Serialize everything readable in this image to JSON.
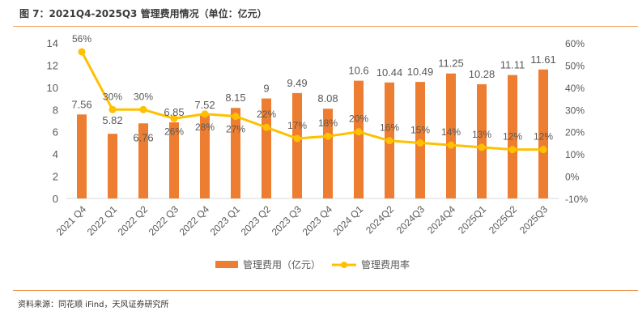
{
  "header": {
    "title": "图 7：2021Q4-2025Q3 管理费用情况（单位：亿元）"
  },
  "footer": {
    "source": "资料来源：同花顺 iFind，天风证券研究所"
  },
  "chart_data": {
    "type": "bar+line",
    "title": "2021Q4-2025Q3 管理费用情况（单位：亿元）",
    "categories": [
      "2021 Q4",
      "2022 Q1",
      "2022 Q2",
      "2022 Q3",
      "2022 Q4",
      "2023 Q1",
      "2023 Q2",
      "2023 Q3",
      "2023 Q4",
      "2024 Q1",
      "2024Q2",
      "2024Q3",
      "2024Q4",
      "2025Q1",
      "2025Q2",
      "2025Q3"
    ],
    "series": [
      {
        "name": "管理费用（亿元）",
        "type": "bar",
        "axis": "left",
        "color": "#ed7d31",
        "values": [
          7.56,
          5.82,
          6.76,
          6.85,
          7.52,
          8.15,
          9,
          9.49,
          8.08,
          10.6,
          10.44,
          10.49,
          11.25,
          10.28,
          11.11,
          11.61
        ],
        "labels": [
          "7.56",
          "5.82",
          "6.76",
          "6.85",
          "7.52",
          "8.15",
          "9",
          "9.49",
          "8.08",
          "10.6",
          "10.44",
          "10.49",
          "11.25",
          "10.28",
          "11.11",
          "11.61"
        ]
      },
      {
        "name": "管理费用率",
        "type": "line",
        "axis": "right",
        "color": "#ffc000",
        "values": [
          56,
          30,
          30,
          26,
          28,
          27,
          22,
          17,
          18,
          20,
          16,
          15,
          14,
          13,
          12,
          12
        ],
        "labels": [
          "56%",
          "30%",
          "30%",
          "26%",
          "28%",
          "27%",
          "22%",
          "17%",
          "18%",
          "20%",
          "16%",
          "15%",
          "14%",
          "13%",
          "12%",
          "12%"
        ]
      }
    ],
    "left_axis": {
      "min": 0,
      "max": 14,
      "ticks": [
        "0",
        "2",
        "4",
        "6",
        "8",
        "10",
        "12",
        "14"
      ]
    },
    "right_axis": {
      "min": -10,
      "max": 60,
      "ticks": [
        "-10%",
        "0%",
        "10%",
        "20%",
        "30%",
        "40%",
        "50%",
        "60%"
      ]
    },
    "xlabel": "",
    "ylabel": "",
    "grid": false,
    "legend": {
      "position": "bottom",
      "items": [
        "管理费用（亿元）",
        "管理费用率"
      ]
    },
    "label_color": "#595959",
    "axis_color": "#d9d9d9"
  }
}
